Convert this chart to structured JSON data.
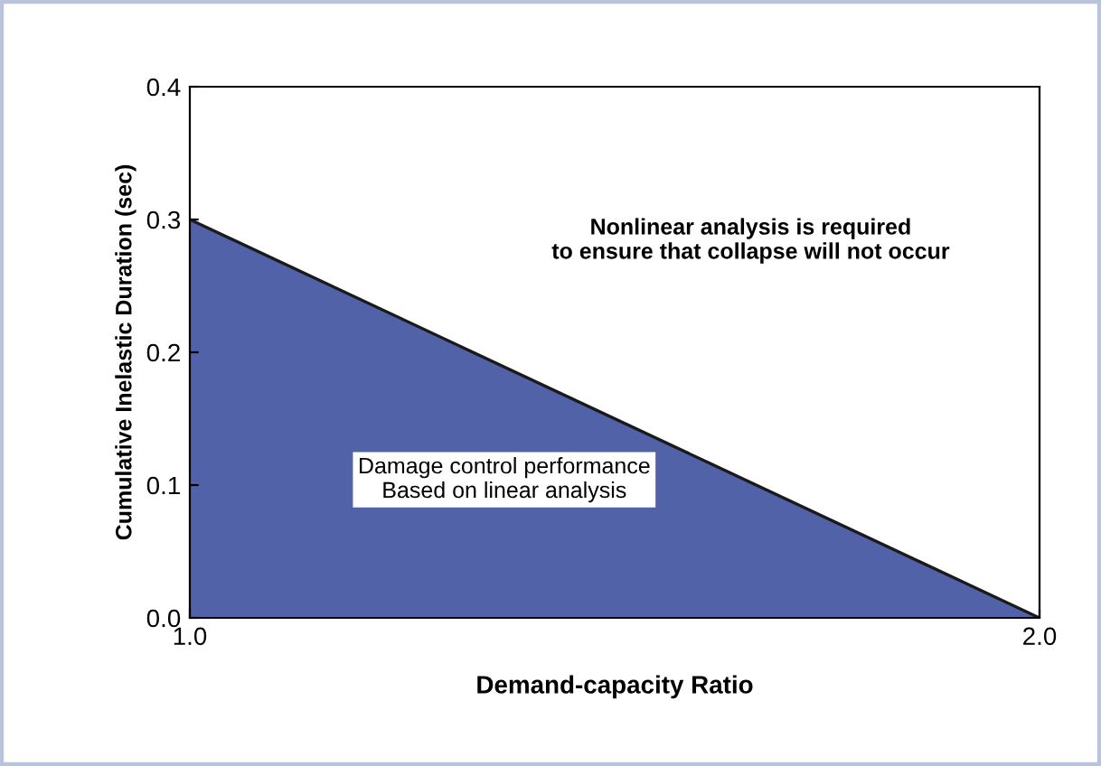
{
  "chart_data": {
    "type": "area",
    "x": [
      1.0,
      2.0
    ],
    "series": [
      {
        "color": "#5262a8",
        "values": [
          0.3,
          0.0
        ]
      }
    ],
    "xlabel": "Demand-capacity Ratio",
    "ylabel": "Cumulative Inelastic Duration (sec)",
    "xlim": [
      1.0,
      2.0
    ],
    "ylim": [
      0.0,
      0.4
    ],
    "xticks": [
      {
        "value": 1,
        "label": "1.0"
      },
      {
        "value": 2,
        "label": "2.0"
      }
    ],
    "yticks": [
      {
        "value": 0,
        "label": "0.0"
      },
      0.1,
      0.2,
      0.3,
      0.4
    ],
    "grid": false,
    "annotations": [
      "Nonlinear analysis is required\nto ensure that collapse will not occur",
      "Damage control performance\nBased on linear analysis"
    ]
  }
}
